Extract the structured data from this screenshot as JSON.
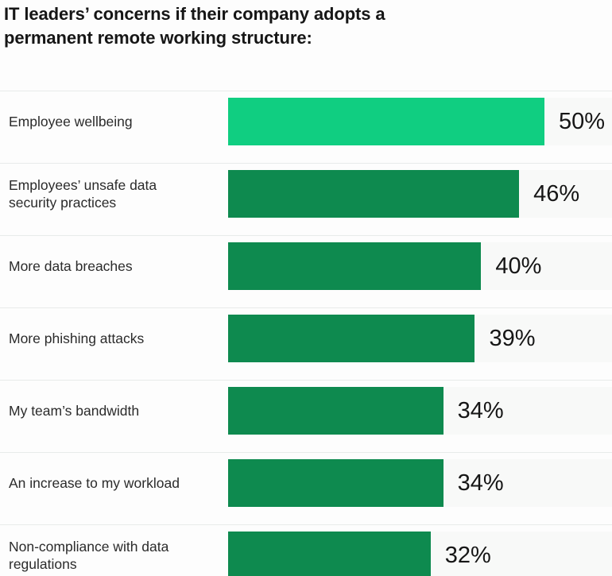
{
  "title": "IT leaders’ concerns if their company adopts a permanent remote working structure:",
  "chart_data": {
    "type": "bar",
    "orientation": "horizontal",
    "title": "IT leaders’ concerns if their company adopts a permanent remote working structure:",
    "categories": [
      "Employee wellbeing",
      "Employees’ unsafe data security practices",
      "More data breaches",
      "More phishing attacks",
      "My team’s bandwidth",
      "An increase to my workload",
      "Non-compliance with data regulations"
    ],
    "values": [
      50,
      46,
      40,
      39,
      34,
      34,
      32
    ],
    "value_labels": [
      "50%",
      "46%",
      "40%",
      "39%",
      "34%",
      "34%",
      "32%"
    ],
    "value_suffix": "%",
    "xlim": [
      0,
      100
    ],
    "grid": false,
    "legend": false,
    "bar_colors": [
      "#10CE81",
      "#0E8A4F",
      "#0E8A4F",
      "#0E8A4F",
      "#0E8A4F",
      "#0E8A4F",
      "#0E8A4F"
    ],
    "highlight_color": "#10CE81",
    "base_color": "#0E8A4F"
  },
  "colors": {
    "highlight_green": "#10CE81",
    "dark_green": "#0E8A4F",
    "separator": "#E8EBEA",
    "track_background": "#F8F9F8",
    "text": "#161616"
  }
}
